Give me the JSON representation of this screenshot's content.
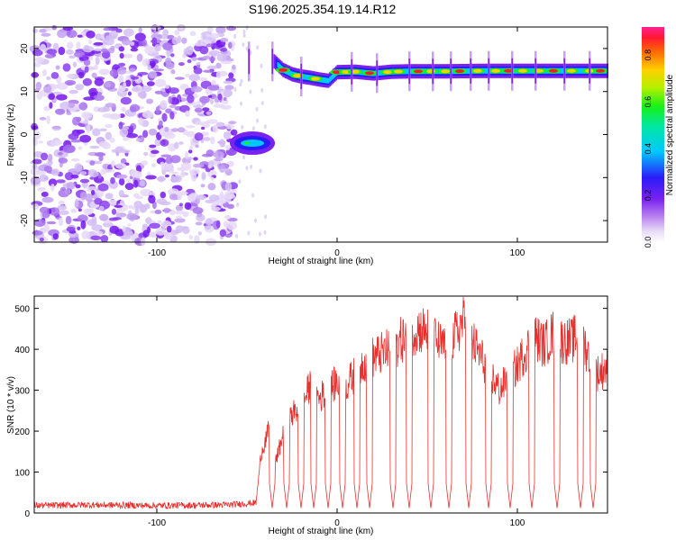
{
  "title": "S196.2025.354.19.14.R12",
  "chart_data": [
    {
      "type": "heatmap",
      "xlabel": "Height of straight line (km)",
      "ylabel": "Frequency (Hz)",
      "xlim": [
        -168,
        150
      ],
      "ylim": [
        -25,
        25
      ],
      "x_ticks": [
        -100,
        0,
        100
      ],
      "y_ticks": [
        -20,
        -10,
        0,
        10,
        20
      ],
      "colorbar": {
        "label": "Normalized spectral amplitude",
        "range": [
          0,
          0.92
        ],
        "ticks": [
          0.0,
          0.2,
          0.4,
          0.6,
          0.8
        ]
      },
      "signal_track": [
        {
          "x": -55,
          "freq": -2.2
        },
        {
          "x": -50,
          "freq": -2.0
        },
        {
          "x": -45,
          "freq": -1.5
        },
        {
          "x": -40,
          "freq": -1.5
        },
        {
          "x": -35,
          "freq": 17
        },
        {
          "x": -30,
          "freq": 15
        },
        {
          "x": -25,
          "freq": 14
        },
        {
          "x": -20,
          "freq": 13.5
        },
        {
          "x": -15,
          "freq": 13.2
        },
        {
          "x": -10,
          "freq": 12.8
        },
        {
          "x": -5,
          "freq": 12.5
        },
        {
          "x": 0,
          "freq": 14.5
        },
        {
          "x": 10,
          "freq": 14.6
        },
        {
          "x": 20,
          "freq": 14.2
        },
        {
          "x": 30,
          "freq": 14.6
        },
        {
          "x": 40,
          "freq": 14.7
        },
        {
          "x": 60,
          "freq": 14.7
        },
        {
          "x": 80,
          "freq": 14.8
        },
        {
          "x": 100,
          "freq": 14.8
        },
        {
          "x": 120,
          "freq": 14.8
        },
        {
          "x": 150,
          "freq": 14.8
        }
      ],
      "notch_x": [
        -49,
        -36,
        -20,
        8,
        22,
        40,
        53,
        63,
        74,
        84,
        97,
        110,
        126,
        140
      ]
    },
    {
      "type": "line",
      "xlabel": "Height of straight line (km)",
      "ylabel": "SNR (10 * v/v)",
      "xlim": [
        -168,
        150
      ],
      "ylim": [
        0,
        530
      ],
      "x_ticks": [
        -100,
        0,
        100
      ],
      "y_ticks": [
        0,
        100,
        200,
        300,
        400,
        500
      ],
      "series": [
        {
          "color": "#e8312f",
          "x": [
            -168,
            -140,
            -100,
            -60,
            -45,
            -42,
            -38,
            -35,
            -30,
            -25,
            -20,
            -15,
            -10,
            -5,
            0,
            5,
            10,
            15,
            20,
            25,
            30,
            35,
            40,
            45,
            50,
            55,
            60,
            65,
            70,
            75,
            80,
            85,
            90,
            95,
            100,
            105,
            110,
            115,
            120,
            125,
            130,
            135,
            140,
            145,
            150
          ],
          "values": [
            18,
            20,
            18,
            20,
            25,
            150,
            200,
            110,
            190,
            240,
            260,
            310,
            280,
            300,
            320,
            310,
            340,
            370,
            380,
            390,
            400,
            420,
            440,
            450,
            445,
            420,
            400,
            430,
            470,
            420,
            380,
            340,
            300,
            330,
            360,
            400,
            430,
            410,
            440,
            420,
            420,
            440,
            380,
            340,
            360
          ]
        }
      ],
      "notch_x": [
        -36,
        -28,
        -20,
        -13,
        -5,
        3,
        11,
        18,
        31,
        40,
        52,
        62,
        73,
        84,
        96,
        108,
        122,
        135,
        142
      ]
    }
  ]
}
